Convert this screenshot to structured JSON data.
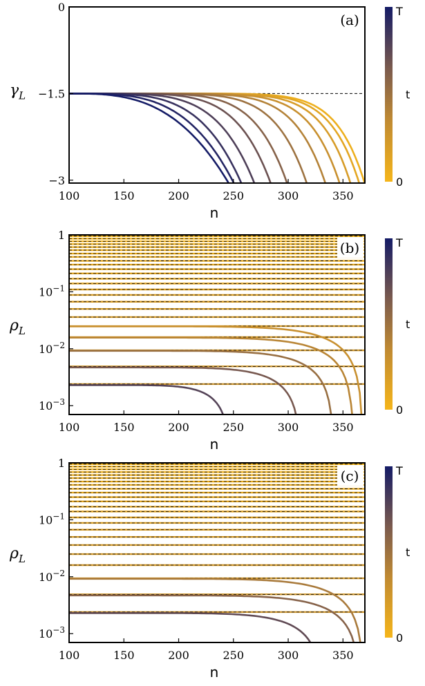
{
  "chart_data": [
    {
      "type": "line",
      "panel_label": "(a)",
      "xlabel": "n",
      "ylabel": "γ_L",
      "y_scale": "linear",
      "xlim": [
        100,
        370
      ],
      "ylim": [
        -3.05,
        0
      ],
      "x_ticks": [
        "100",
        "150",
        "200",
        "250",
        "300",
        "350"
      ],
      "y_ticks": [
        "0",
        "−1.5",
        "−3"
      ],
      "reference_line": {
        "y": -1.5,
        "style": "dashed"
      },
      "series_description": "curves start at γ_L = −1.5 and bend down to −3; colour goes from t = 0 (orange) to t = T (dark blue)",
      "series": [
        {
          "t": 0.05,
          "cross_n": 369
        },
        {
          "t": 0.12,
          "cross_n": 364
        },
        {
          "t": 0.2,
          "cross_n": 356
        },
        {
          "t": 0.3,
          "cross_n": 346
        },
        {
          "t": 0.4,
          "cross_n": 333
        },
        {
          "t": 0.5,
          "cross_n": 316
        },
        {
          "t": 0.6,
          "cross_n": 298
        },
        {
          "t": 0.7,
          "cross_n": 283
        },
        {
          "t": 0.8,
          "cross_n": 268
        },
        {
          "t": 0.88,
          "cross_n": 256
        },
        {
          "t": 0.95,
          "cross_n": 249
        },
        {
          "t": 1.0,
          "cross_n": 244
        }
      ],
      "colorbar": {
        "label": "t",
        "top": "T",
        "bottom": "0"
      }
    },
    {
      "type": "line",
      "panel_label": "(b)",
      "xlabel": "n",
      "ylabel": "ρ_L",
      "y_scale": "log",
      "xlim": [
        100,
        370
      ],
      "ylim": [
        0.0007,
        1
      ],
      "x_ticks": [
        "100",
        "150",
        "200",
        "250",
        "300",
        "350"
      ],
      "y_ticks": [
        {
          "value": 1,
          "label": "1"
        },
        {
          "value": 0.1,
          "label": "10",
          "exp": "−1"
        },
        {
          "value": 0.01,
          "label": "10",
          "exp": "−2"
        },
        {
          "value": 0.001,
          "label": "10",
          "exp": "−3"
        }
      ],
      "levels": [
        0.0024,
        0.0049,
        0.0094,
        0.016,
        0.025,
        0.036,
        0.05,
        0.067,
        0.088,
        0.11,
        0.14,
        0.17,
        0.21,
        0.25,
        0.3,
        0.35,
        0.41,
        0.47,
        0.54,
        0.61,
        0.69,
        0.77,
        0.86,
        0.95
      ],
      "series_description": "horizontal lines at dashed reference levels; the lowest curves drop off at the marked n",
      "series": [
        {
          "start": 0.0023,
          "drop_n": 248,
          "t": 0.78
        },
        {
          "start": 0.0047,
          "drop_n": 312,
          "t": 0.66
        },
        {
          "start": 0.0092,
          "drop_n": 342,
          "t": 0.52
        },
        {
          "start": 0.0157,
          "drop_n": 360,
          "t": 0.38
        },
        {
          "start": 0.0247,
          "drop_n": 368,
          "t": 0.3
        }
      ],
      "colorbar": {
        "label": "t",
        "top": "T",
        "bottom": "0"
      }
    },
    {
      "type": "line",
      "panel_label": "(c)",
      "xlabel": "n",
      "ylabel": "ρ_L",
      "y_scale": "log",
      "xlim": [
        100,
        370
      ],
      "ylim": [
        0.0007,
        1
      ],
      "x_ticks": [
        "100",
        "150",
        "200",
        "250",
        "300",
        "350"
      ],
      "y_ticks": [
        {
          "value": 1,
          "label": "1"
        },
        {
          "value": 0.1,
          "label": "10",
          "exp": "−1"
        },
        {
          "value": 0.01,
          "label": "10",
          "exp": "−2"
        },
        {
          "value": 0.001,
          "label": "10",
          "exp": "−3"
        }
      ],
      "levels": [
        0.0024,
        0.0049,
        0.0094,
        0.016,
        0.025,
        0.036,
        0.05,
        0.067,
        0.088,
        0.11,
        0.14,
        0.17,
        0.21,
        0.25,
        0.3,
        0.35,
        0.41,
        0.47,
        0.54,
        0.61,
        0.69,
        0.77,
        0.86,
        0.95
      ],
      "series_description": "horizontal lines at dashed reference levels; the lowest curves drop off at the marked n",
      "series": [
        {
          "start": 0.0023,
          "drop_n": 332,
          "t": 0.74
        },
        {
          "start": 0.0047,
          "drop_n": 366,
          "t": 0.6
        },
        {
          "start": 0.0092,
          "drop_n": 369,
          "t": 0.45
        }
      ],
      "colorbar": {
        "label": "t",
        "top": "T",
        "bottom": "0"
      }
    }
  ]
}
